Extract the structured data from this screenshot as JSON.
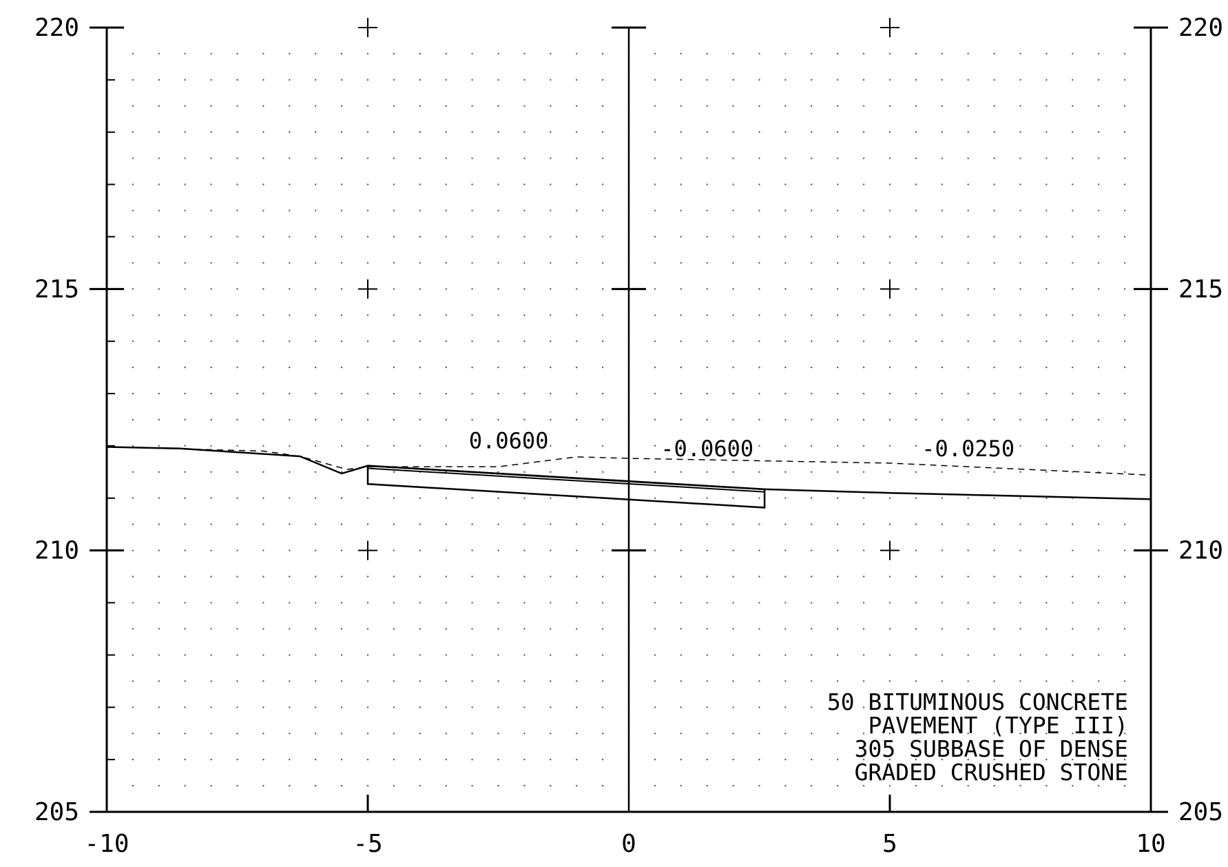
{
  "chart_data": {
    "type": "cross-section",
    "x_ticks": [
      "-10",
      "-5",
      "0",
      "5",
      "10"
    ],
    "y_ticks_left": [
      "220",
      "215",
      "210",
      "205"
    ],
    "y_ticks_right": [
      "220",
      "215",
      "210",
      "205"
    ],
    "x_range": [
      -10,
      10
    ],
    "y_range": [
      205,
      220
    ],
    "grid": "dots",
    "slope_labels": [
      {
        "text": "0.0600",
        "x": -2.3,
        "y": 211.95
      },
      {
        "text": "-0.0600",
        "x": 1.5,
        "y": 211.8
      },
      {
        "text": "-0.0250",
        "x": 6.5,
        "y": 211.8
      }
    ],
    "existing_ground": [
      [
        -10,
        211.98
      ],
      [
        -7,
        211.9
      ],
      [
        -6.3,
        211.8
      ],
      [
        -5.4,
        211.55
      ],
      [
        -5,
        211.6
      ],
      [
        -2.5,
        211.6
      ],
      [
        -1,
        211.79
      ],
      [
        0,
        211.76
      ],
      [
        5,
        211.67
      ],
      [
        10,
        211.44
      ]
    ],
    "proposed_surface": [
      [
        -10,
        211.98
      ],
      [
        -8.6,
        211.95
      ],
      [
        -6.3,
        211.8
      ],
      [
        -5.5,
        211.47
      ],
      [
        -5,
        211.62
      ],
      [
        0,
        211.32
      ],
      [
        2.6,
        211.17
      ],
      [
        5,
        211.1
      ],
      [
        10,
        210.98
      ]
    ],
    "pavement_box": {
      "left": -5,
      "right": 2.6,
      "top_left": 211.62,
      "top_right": 211.17,
      "bottom_left": 211.27,
      "bottom_right": 210.82,
      "inner_top_left": 211.57,
      "inner_top_right": 211.12
    },
    "note_lines": [
      "50 BITUMINOUS CONCRETE",
      "PAVEMENT (TYPE III)",
      "305 SUBBASE OF DENSE",
      "GRADED CRUSHED STONE"
    ]
  }
}
